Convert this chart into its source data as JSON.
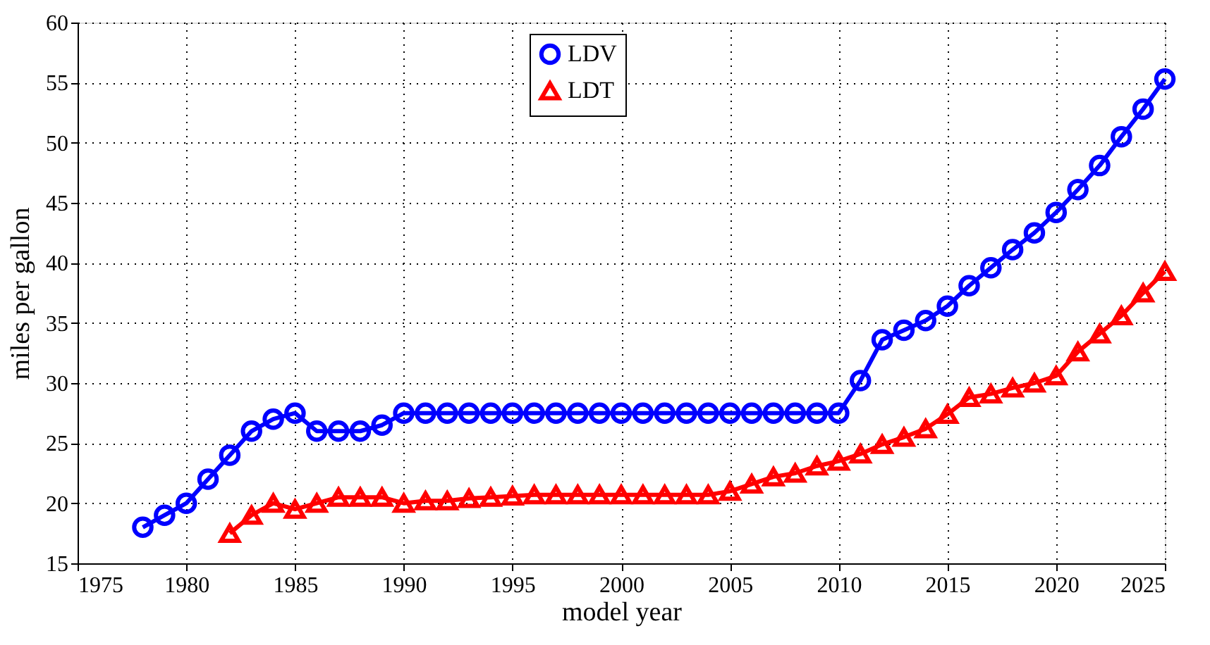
{
  "chart_data": {
    "type": "line",
    "xlabel": "model year",
    "ylabel": "miles per gallon",
    "xlim": [
      1975,
      2025
    ],
    "xticks": [
      1975,
      1980,
      1985,
      1990,
      1995,
      2000,
      2005,
      2010,
      2015,
      2020,
      2025
    ],
    "ylim": [
      15,
      60
    ],
    "yticks": [
      15,
      20,
      25,
      30,
      35,
      40,
      45,
      50,
      55,
      60
    ],
    "grid": true,
    "legend": "top",
    "line_style": "solid",
    "series": [
      {
        "name": "LDV",
        "color": "#0000ff",
        "marker": "circle",
        "x": [
          1978,
          1979,
          1980,
          1981,
          1982,
          1983,
          1984,
          1985,
          1986,
          1987,
          1988,
          1989,
          1990,
          1991,
          1992,
          1993,
          1994,
          1995,
          1996,
          1997,
          1998,
          1999,
          2000,
          2001,
          2002,
          2003,
          2004,
          2005,
          2006,
          2007,
          2008,
          2009,
          2010,
          2011,
          2012,
          2013,
          2014,
          2015,
          2016,
          2017,
          2018,
          2019,
          2020,
          2021,
          2022,
          2023,
          2024,
          2025
        ],
        "values": [
          18,
          19,
          20,
          22,
          24,
          26,
          27,
          27.5,
          26,
          26,
          26,
          26.5,
          27.5,
          27.5,
          27.5,
          27.5,
          27.5,
          27.5,
          27.5,
          27.5,
          27.5,
          27.5,
          27.5,
          27.5,
          27.5,
          27.5,
          27.5,
          27.5,
          27.5,
          27.5,
          27.5,
          27.5,
          27.5,
          30.2,
          33.6,
          34.4,
          35.2,
          36.4,
          38.1,
          39.6,
          41.1,
          42.5,
          44.2,
          46.1,
          48.1,
          50.5,
          52.8,
          55.3
        ]
      },
      {
        "name": "LDT",
        "color": "#ff0000",
        "marker": "triangle",
        "x": [
          1982,
          1983,
          1984,
          1985,
          1986,
          1987,
          1988,
          1989,
          1990,
          1991,
          1992,
          1993,
          1994,
          1995,
          1996,
          1997,
          1998,
          1999,
          2000,
          2001,
          2002,
          2003,
          2004,
          2005,
          2006,
          2007,
          2008,
          2009,
          2010,
          2011,
          2012,
          2013,
          2014,
          2015,
          2016,
          2017,
          2018,
          2019,
          2020,
          2021,
          2022,
          2023,
          2024,
          2025
        ],
        "values": [
          17.5,
          19.0,
          20.0,
          19.5,
          20.0,
          20.5,
          20.5,
          20.5,
          20.0,
          20.2,
          20.2,
          20.4,
          20.5,
          20.6,
          20.7,
          20.7,
          20.7,
          20.7,
          20.7,
          20.7,
          20.7,
          20.7,
          20.7,
          21.0,
          21.6,
          22.2,
          22.5,
          23.1,
          23.5,
          24.1,
          24.9,
          25.5,
          26.2,
          27.4,
          28.8,
          29.1,
          29.6,
          30.0,
          30.6,
          32.6,
          34.1,
          35.6,
          37.5,
          39.3
        ]
      }
    ]
  }
}
